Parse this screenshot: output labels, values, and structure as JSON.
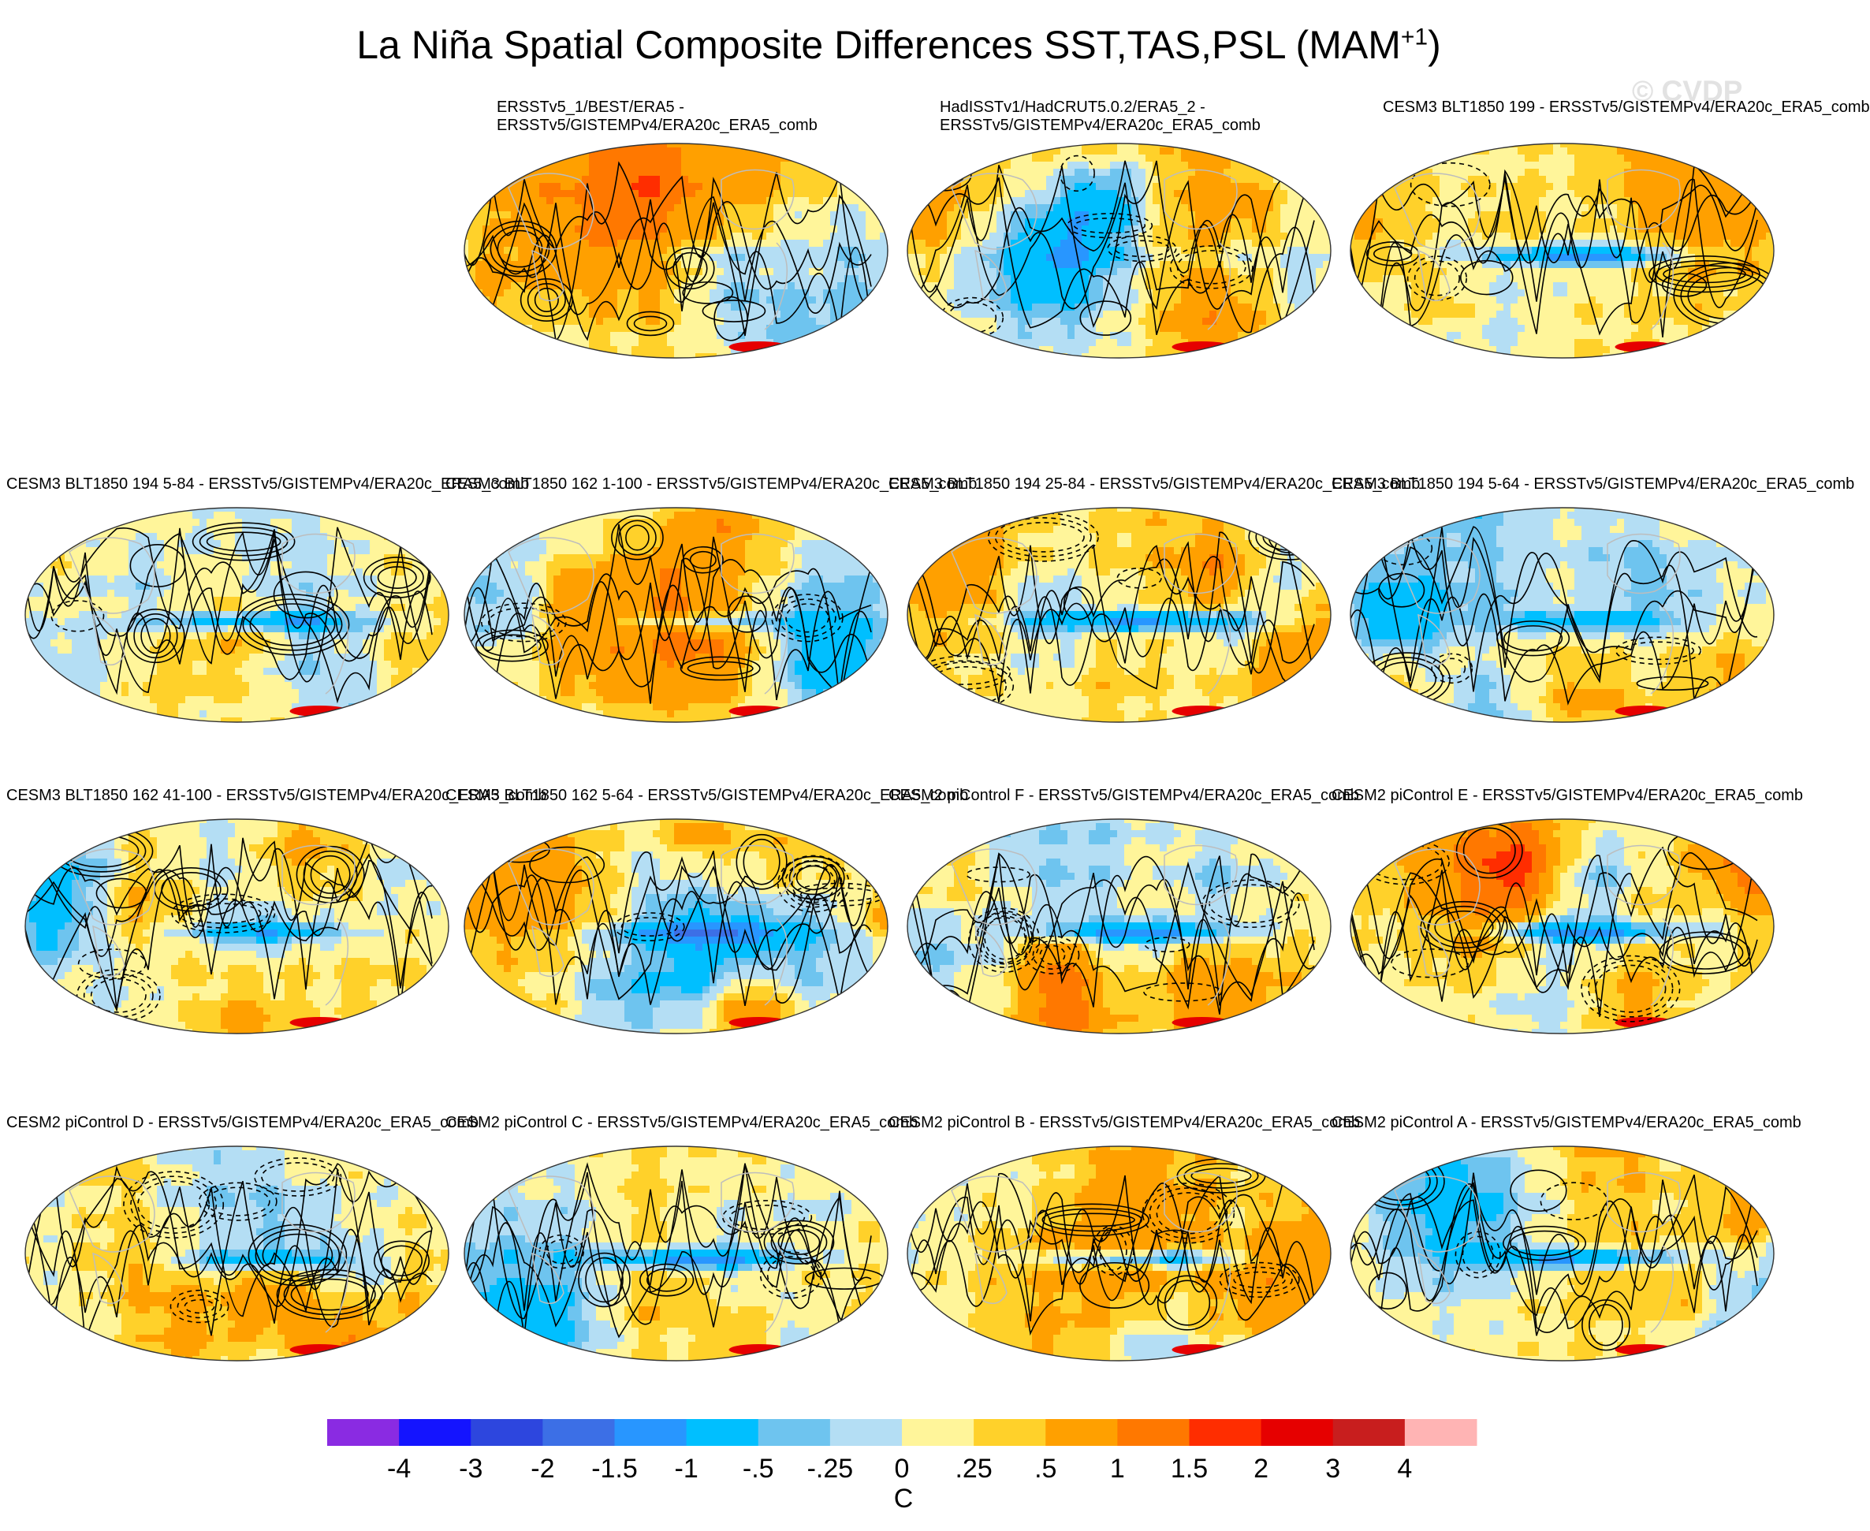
{
  "figure": {
    "title_main": "La Niña Spatial Composite Differences SST,TAS,PSL (MAM",
    "title_sup": "+1",
    "title_close": ")",
    "watermark": "© CVDP"
  },
  "chart_data": {
    "type": "heatmap",
    "title": "La Niña Spatial Composite Differences SST,TAS,PSL (MAM+1)",
    "projection": "Robinson (global)",
    "field_shaded": "SST/TAS composite difference",
    "field_contoured": "PSL composite difference (solid positive, dashed negative)",
    "colorbar": {
      "units": "C",
      "levels": [
        "-4",
        "-3",
        "-2",
        "-1.5",
        "-1",
        "-.5",
        "-.25",
        "0",
        ".25",
        ".5",
        "1",
        "1.5",
        "2",
        "3",
        "4"
      ],
      "level_values": [
        -4,
        -3,
        -2,
        -1.5,
        -1,
        -0.5,
        -0.25,
        0,
        0.25,
        0.5,
        1,
        1.5,
        2,
        3,
        4
      ],
      "colors": [
        "#8a2be2",
        "#1414ff",
        "#2d46de",
        "#3c6fe6",
        "#2896ff",
        "#00bfff",
        "#6ec4ef",
        "#b4def4",
        "#fff59a",
        "#ffd12a",
        "#ffa000",
        "#ff7800",
        "#ff2d00",
        "#e60000",
        "#c81e1e",
        "#ffb4b4"
      ]
    },
    "panels": [
      {
        "title_line1": "ERSSTv5_1/BEST/ERA5 -",
        "title_line2": "ERSSTv5/GISTEMPv4/ERA20c_ERA5_comb",
        "seed": 11
      },
      {
        "title_line1": "HadISSTv1/HadCRUT5.0.2/ERA5_2 -",
        "title_line2": "ERSSTv5/GISTEMPv4/ERA20c_ERA5_comb",
        "seed": 23
      },
      {
        "title_line1": "CESM3 BLT1850 199 - ERSSTv5/GISTEMPv4/ERA20c_ERA5_comb",
        "title_line2": "",
        "seed": 37
      },
      {
        "title_line1": "CESM3 BLT1850 194 5-84 - ERSSTv5/GISTEMPv4/ERA20c_ERA5_comb",
        "title_line2": "",
        "seed": 41
      },
      {
        "title_line1": "CESM3 BLT1850 162 1-100 - ERSSTv5/GISTEMPv4/ERA20c_ERA5_comb",
        "title_line2": "",
        "seed": 53
      },
      {
        "title_line1": "CESM3 BLT1850 194 25-84 - ERSSTv5/GISTEMPv4/ERA20c_ERA5_comb",
        "title_line2": "",
        "seed": 67
      },
      {
        "title_line1": "CESM3 BLT1850 194 5-64 - ERSSTv5/GISTEMPv4/ERA20c_ERA5_comb",
        "title_line2": "",
        "seed": 71
      },
      {
        "title_line1": "CESM3 BLT1850 162 41-100 - ERSSTv5/GISTEMPv4/ERA20c_ERA5_comb",
        "title_line2": "",
        "seed": 83
      },
      {
        "title_line1": "CESM3 BLT1850 162 5-64 - ERSSTv5/GISTEMPv4/ERA20c_ERA5_comb",
        "title_line2": "",
        "seed": 97
      },
      {
        "title_line1": "CESM2 piControl F - ERSSTv5/GISTEMPv4/ERA20c_ERA5_comb",
        "title_line2": "",
        "seed": 101
      },
      {
        "title_line1": "CESM2 piControl E - ERSSTv5/GISTEMPv4/ERA20c_ERA5_comb",
        "title_line2": "",
        "seed": 113
      },
      {
        "title_line1": "CESM2 piControl D - ERSSTv5/GISTEMPv4/ERA20c_ERA5_comb",
        "title_line2": "",
        "seed": 127
      },
      {
        "title_line1": "CESM2 piControl C - ERSSTv5/GISTEMPv4/ERA20c_ERA5_comb",
        "title_line2": "",
        "seed": 131
      },
      {
        "title_line1": "CESM2 piControl B - ERSSTv5/GISTEMPv4/ERA20c_ERA5_comb",
        "title_line2": "",
        "seed": 149
      },
      {
        "title_line1": "CESM2 piControl A - ERSSTv5/GISTEMPv4/ERA20c_ERA5_comb",
        "title_line2": "",
        "seed": 157
      }
    ]
  }
}
